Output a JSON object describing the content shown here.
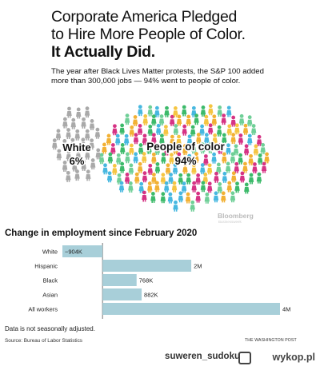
{
  "header": {
    "line1": "Corporate America Pledged",
    "line2": "to Hire More People of Color.",
    "line3": "It Actually Did.",
    "dek": "The year after Black Lives Matter protests, the S&P 100 added more than 300,000 jobs — 94% went to people of color."
  },
  "illustration": {
    "white_label": "White",
    "white_pct": "6%",
    "poc_label": "People of color",
    "poc_pct": "94%",
    "white_color": "#a9a9a9",
    "poc_colors": [
      "#d63384",
      "#f2b134",
      "#6fcf97",
      "#47b8e0",
      "#3cba6a",
      "#f5c542"
    ],
    "bloomberg": "Bloomberg",
    "bloomberg_sub": "Businessweek"
  },
  "chart_data": {
    "type": "bar",
    "orientation": "horizontal",
    "title": "Change in employment since February 2020",
    "categories": [
      "White",
      "Hispanic",
      "Black",
      "Asian",
      "All workers"
    ],
    "values": [
      -904000,
      2000000,
      768000,
      882000,
      4000000
    ],
    "labels": [
      "−904K",
      "2M",
      "768K",
      "882K",
      "4M"
    ],
    "bar_color": "#a8cfd9",
    "xlim": [
      -904000,
      4000000
    ]
  },
  "footer": {
    "note": "Data is not seasonally adjusted.",
    "source": "Source: Bureau of Labor Statistics",
    "credit": "THE WASHINGTON POST"
  },
  "watermark": {
    "user": "suweren_sudoku",
    "logo": "wykop.pl",
    "icon": "wykop-logo-icon"
  }
}
